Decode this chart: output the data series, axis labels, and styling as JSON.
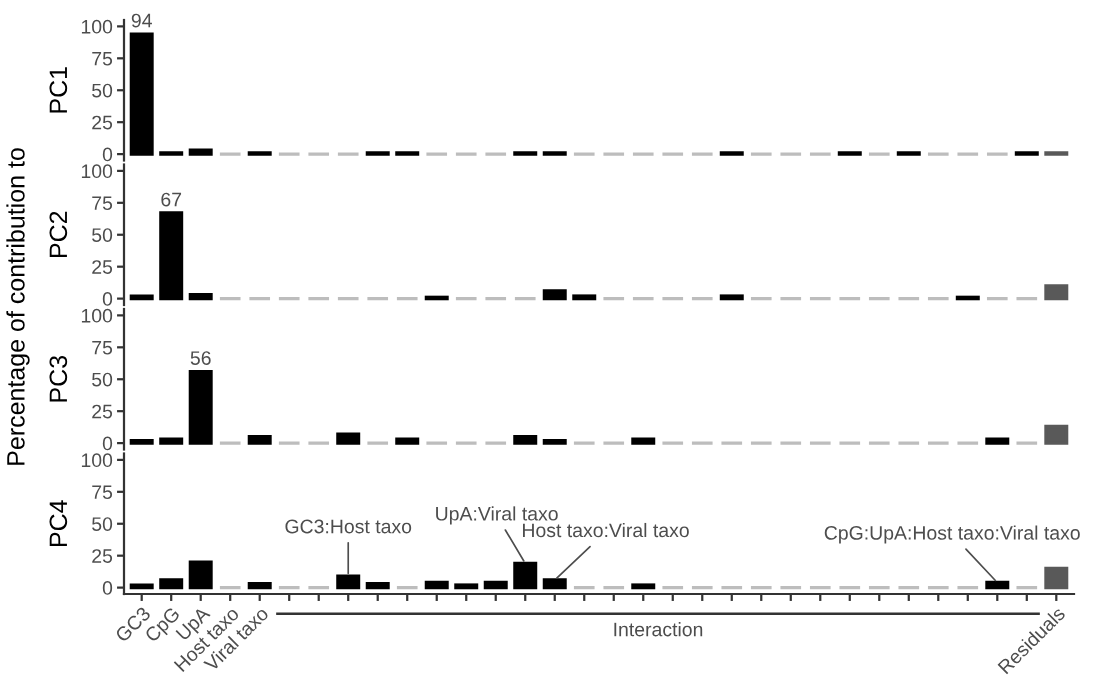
{
  "chart_data": [
    {
      "type": "bar",
      "ylabel": "PC1",
      "categories": [
        "GC3",
        "CpG",
        "UpA",
        "Host taxo",
        "Viral taxo",
        null,
        null,
        null,
        null,
        null,
        null,
        null,
        null,
        null,
        null,
        null,
        null,
        null,
        null,
        null,
        null,
        null,
        null,
        null,
        null,
        null,
        null,
        null,
        null,
        null,
        null,
        "Residuals"
      ],
      "values": [
        94,
        1,
        3,
        0,
        1,
        0,
        0,
        0,
        1,
        1,
        0,
        0,
        0,
        1,
        1,
        0,
        0,
        0,
        0,
        0,
        1,
        0,
        0,
        0,
        1,
        0,
        1,
        0,
        0,
        0,
        1,
        1
      ],
      "colors": [
        "#000000",
        "#000000",
        "#000000",
        "#bdbdbd",
        "#000000",
        "#bdbdbd",
        "#bdbdbd",
        "#bdbdbd",
        "#000000",
        "#000000",
        "#bdbdbd",
        "#bdbdbd",
        "#bdbdbd",
        "#000000",
        "#000000",
        "#bdbdbd",
        "#bdbdbd",
        "#bdbdbd",
        "#bdbdbd",
        "#bdbdbd",
        "#000000",
        "#bdbdbd",
        "#bdbdbd",
        "#bdbdbd",
        "#000000",
        "#bdbdbd",
        "#000000",
        "#bdbdbd",
        "#bdbdbd",
        "#bdbdbd",
        "#000000",
        "#595959"
      ],
      "value_labels": [
        "94",
        null,
        null,
        null,
        null,
        null,
        null,
        null,
        null,
        null,
        null,
        null,
        null,
        null,
        null,
        null,
        null,
        null,
        null,
        null,
        null,
        null,
        null,
        null,
        null,
        null,
        null,
        null,
        null,
        null,
        null,
        null
      ],
      "ylim": [
        -5,
        105
      ],
      "yticks": [
        0,
        25,
        50,
        75,
        100
      ],
      "grid": false,
      "tick_labels": "y",
      "annotations": [
        "Percentage of contribution to"
      ]
    },
    {
      "type": "bar",
      "ylabel": "PC2",
      "categories": [
        "GC3",
        "CpG",
        "UpA",
        "Host taxo",
        "Viral taxo",
        null,
        null,
        null,
        null,
        null,
        null,
        null,
        null,
        null,
        null,
        null,
        null,
        null,
        null,
        null,
        null,
        null,
        null,
        null,
        null,
        null,
        null,
        null,
        null,
        null,
        null,
        "Residuals"
      ],
      "values": [
        2,
        67,
        3,
        0,
        0,
        0,
        0,
        0,
        0,
        0,
        1,
        0,
        0,
        0,
        6,
        2,
        0,
        0,
        0,
        0,
        2,
        0,
        0,
        0,
        0,
        0,
        0,
        0,
        1,
        0,
        0,
        10
      ],
      "colors": [
        "#000000",
        "#000000",
        "#000000",
        "#bdbdbd",
        "#bdbdbd",
        "#bdbdbd",
        "#bdbdbd",
        "#bdbdbd",
        "#bdbdbd",
        "#bdbdbd",
        "#000000",
        "#bdbdbd",
        "#bdbdbd",
        "#bdbdbd",
        "#000000",
        "#000000",
        "#bdbdbd",
        "#bdbdbd",
        "#bdbdbd",
        "#bdbdbd",
        "#000000",
        "#bdbdbd",
        "#bdbdbd",
        "#bdbdbd",
        "#bdbdbd",
        "#bdbdbd",
        "#bdbdbd",
        "#bdbdbd",
        "#000000",
        "#bdbdbd",
        "#bdbdbd",
        "#595959"
      ],
      "value_labels": [
        null,
        "67",
        null,
        null,
        null,
        null,
        null,
        null,
        null,
        null,
        null,
        null,
        null,
        null,
        null,
        null,
        null,
        null,
        null,
        null,
        null,
        null,
        null,
        null,
        null,
        null,
        null,
        null,
        null,
        null,
        null,
        null
      ],
      "ylim": [
        -5,
        105
      ],
      "yticks": [
        0,
        25,
        50,
        75,
        100
      ],
      "grid": false,
      "tick_labels": "y"
    },
    {
      "type": "bar",
      "ylabel": "PC3",
      "categories": [
        "GC3",
        "CpG",
        "UpA",
        "Host taxo",
        "Viral taxo",
        null,
        null,
        null,
        null,
        null,
        null,
        null,
        null,
        null,
        null,
        null,
        null,
        null,
        null,
        null,
        null,
        null,
        null,
        null,
        null,
        null,
        null,
        null,
        null,
        null,
        null,
        "Residuals"
      ],
      "values": [
        2,
        3,
        56,
        0,
        5,
        0,
        0,
        7,
        0,
        3,
        0,
        0,
        0,
        5,
        2,
        0,
        0,
        3,
        0,
        0,
        0,
        0,
        0,
        0,
        0,
        0,
        0,
        0,
        0,
        3,
        0,
        13
      ],
      "colors": [
        "#000000",
        "#000000",
        "#000000",
        "#bdbdbd",
        "#000000",
        "#bdbdbd",
        "#bdbdbd",
        "#000000",
        "#bdbdbd",
        "#000000",
        "#bdbdbd",
        "#bdbdbd",
        "#bdbdbd",
        "#000000",
        "#000000",
        "#bdbdbd",
        "#bdbdbd",
        "#000000",
        "#bdbdbd",
        "#bdbdbd",
        "#bdbdbd",
        "#bdbdbd",
        "#bdbdbd",
        "#bdbdbd",
        "#bdbdbd",
        "#bdbdbd",
        "#bdbdbd",
        "#bdbdbd",
        "#bdbdbd",
        "#000000",
        "#bdbdbd",
        "#595959"
      ],
      "value_labels": [
        null,
        null,
        "56",
        null,
        null,
        null,
        null,
        null,
        null,
        null,
        null,
        null,
        null,
        null,
        null,
        null,
        null,
        null,
        null,
        null,
        null,
        null,
        null,
        null,
        null,
        null,
        null,
        null,
        null,
        null,
        null,
        null
      ],
      "ylim": [
        -5,
        105
      ],
      "yticks": [
        0,
        25,
        50,
        75,
        100
      ],
      "grid": false,
      "tick_labels": "y"
    },
    {
      "type": "bar",
      "ylabel": "PC4",
      "categories": [
        "GC3",
        "CpG",
        "UpA",
        "Host taxo",
        "Viral taxo",
        null,
        null,
        null,
        null,
        null,
        null,
        null,
        null,
        null,
        null,
        null,
        null,
        null,
        null,
        null,
        null,
        null,
        null,
        null,
        null,
        null,
        null,
        null,
        null,
        null,
        null,
        "Residuals"
      ],
      "values": [
        2,
        6,
        20,
        0,
        3,
        0,
        0,
        9,
        3,
        0,
        4,
        2,
        4,
        19,
        6,
        0,
        0,
        2,
        0,
        0,
        0,
        0,
        0,
        0,
        0,
        0,
        0,
        0,
        0,
        4,
        0,
        15
      ],
      "colors": [
        "#000000",
        "#000000",
        "#000000",
        "#bdbdbd",
        "#000000",
        "#bdbdbd",
        "#bdbdbd",
        "#000000",
        "#000000",
        "#bdbdbd",
        "#000000",
        "#000000",
        "#000000",
        "#000000",
        "#000000",
        "#bdbdbd",
        "#bdbdbd",
        "#000000",
        "#bdbdbd",
        "#bdbdbd",
        "#bdbdbd",
        "#bdbdbd",
        "#bdbdbd",
        "#bdbdbd",
        "#bdbdbd",
        "#bdbdbd",
        "#bdbdbd",
        "#bdbdbd",
        "#bdbdbd",
        "#000000",
        "#bdbdbd",
        "#595959"
      ],
      "value_labels": [
        null,
        null,
        null,
        null,
        null,
        null,
        null,
        "GC3:Host taxo",
        null,
        null,
        null,
        null,
        null,
        "UpA:Viral taxo",
        "Host taxo:Viral taxo",
        null,
        null,
        null,
        null,
        null,
        null,
        null,
        null,
        null,
        null,
        null,
        null,
        null,
        null,
        "CpG:UpA:Host taxo:Viral taxo",
        null,
        null
      ],
      "ylim": [
        -5,
        105
      ],
      "yticks": [
        0,
        25,
        50,
        75,
        100
      ],
      "grid": false,
      "annotations": [
        "Interaction"
      ]
    }
  ]
}
